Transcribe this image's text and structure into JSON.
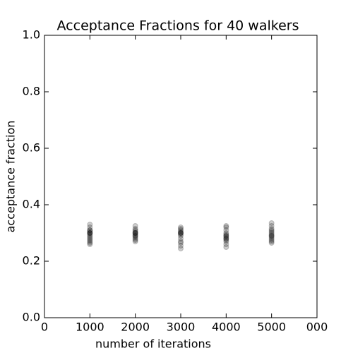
{
  "chart_data": {
    "type": "scatter",
    "title": "Acceptance Fractions for 40 walkers",
    "xlabel": "number of iterations",
    "ylabel": "acceptance fraction",
    "color": "#000000",
    "alpha": 0.2,
    "x": [
      1000,
      1000,
      1000,
      1000,
      1000,
      1000,
      1000,
      1000,
      1000,
      1000,
      1000,
      1000,
      1000,
      1000,
      1000,
      1000,
      2000,
      2000,
      2000,
      2000,
      2000,
      2000,
      2000,
      2000,
      2000,
      2000,
      2000,
      2000,
      2000,
      2000,
      3000,
      3000,
      3000,
      3000,
      3000,
      3000,
      3000,
      3000,
      3000,
      3000,
      3000,
      3000,
      3000,
      3000,
      4000,
      4000,
      4000,
      4000,
      4000,
      4000,
      4000,
      4000,
      4000,
      4000,
      4000,
      4000,
      4000,
      4000,
      5000,
      5000,
      5000,
      5000,
      5000,
      5000,
      5000,
      5000,
      5000,
      5000,
      5000,
      5000,
      5000,
      5000
    ],
    "values": [
      0.33,
      0.32,
      0.31,
      0.305,
      0.3,
      0.3,
      0.295,
      0.29,
      0.285,
      0.28,
      0.275,
      0.27,
      0.265,
      0.26,
      0.3,
      0.31,
      0.325,
      0.315,
      0.31,
      0.305,
      0.3,
      0.3,
      0.295,
      0.29,
      0.285,
      0.28,
      0.275,
      0.27,
      0.3,
      0.29,
      0.32,
      0.315,
      0.31,
      0.305,
      0.3,
      0.3,
      0.295,
      0.29,
      0.28,
      0.27,
      0.265,
      0.255,
      0.245,
      0.3,
      0.325,
      0.32,
      0.31,
      0.3,
      0.295,
      0.29,
      0.285,
      0.28,
      0.28,
      0.275,
      0.27,
      0.26,
      0.25,
      0.29,
      0.335,
      0.325,
      0.315,
      0.31,
      0.305,
      0.3,
      0.295,
      0.29,
      0.285,
      0.28,
      0.275,
      0.27,
      0.265,
      0.29
    ],
    "xlim": [
      0,
      6000
    ],
    "xticks": [
      0,
      1000,
      2000,
      3000,
      4000,
      5000,
      {
        "value": 6000,
        "label": "000"
      }
    ],
    "ylim": [
      0,
      1
    ],
    "yticks": [
      {
        "value": 0,
        "label": "0.0"
      },
      0.2,
      0.4,
      0.6,
      0.8,
      {
        "value": 1,
        "label": "1.0"
      }
    ]
  }
}
